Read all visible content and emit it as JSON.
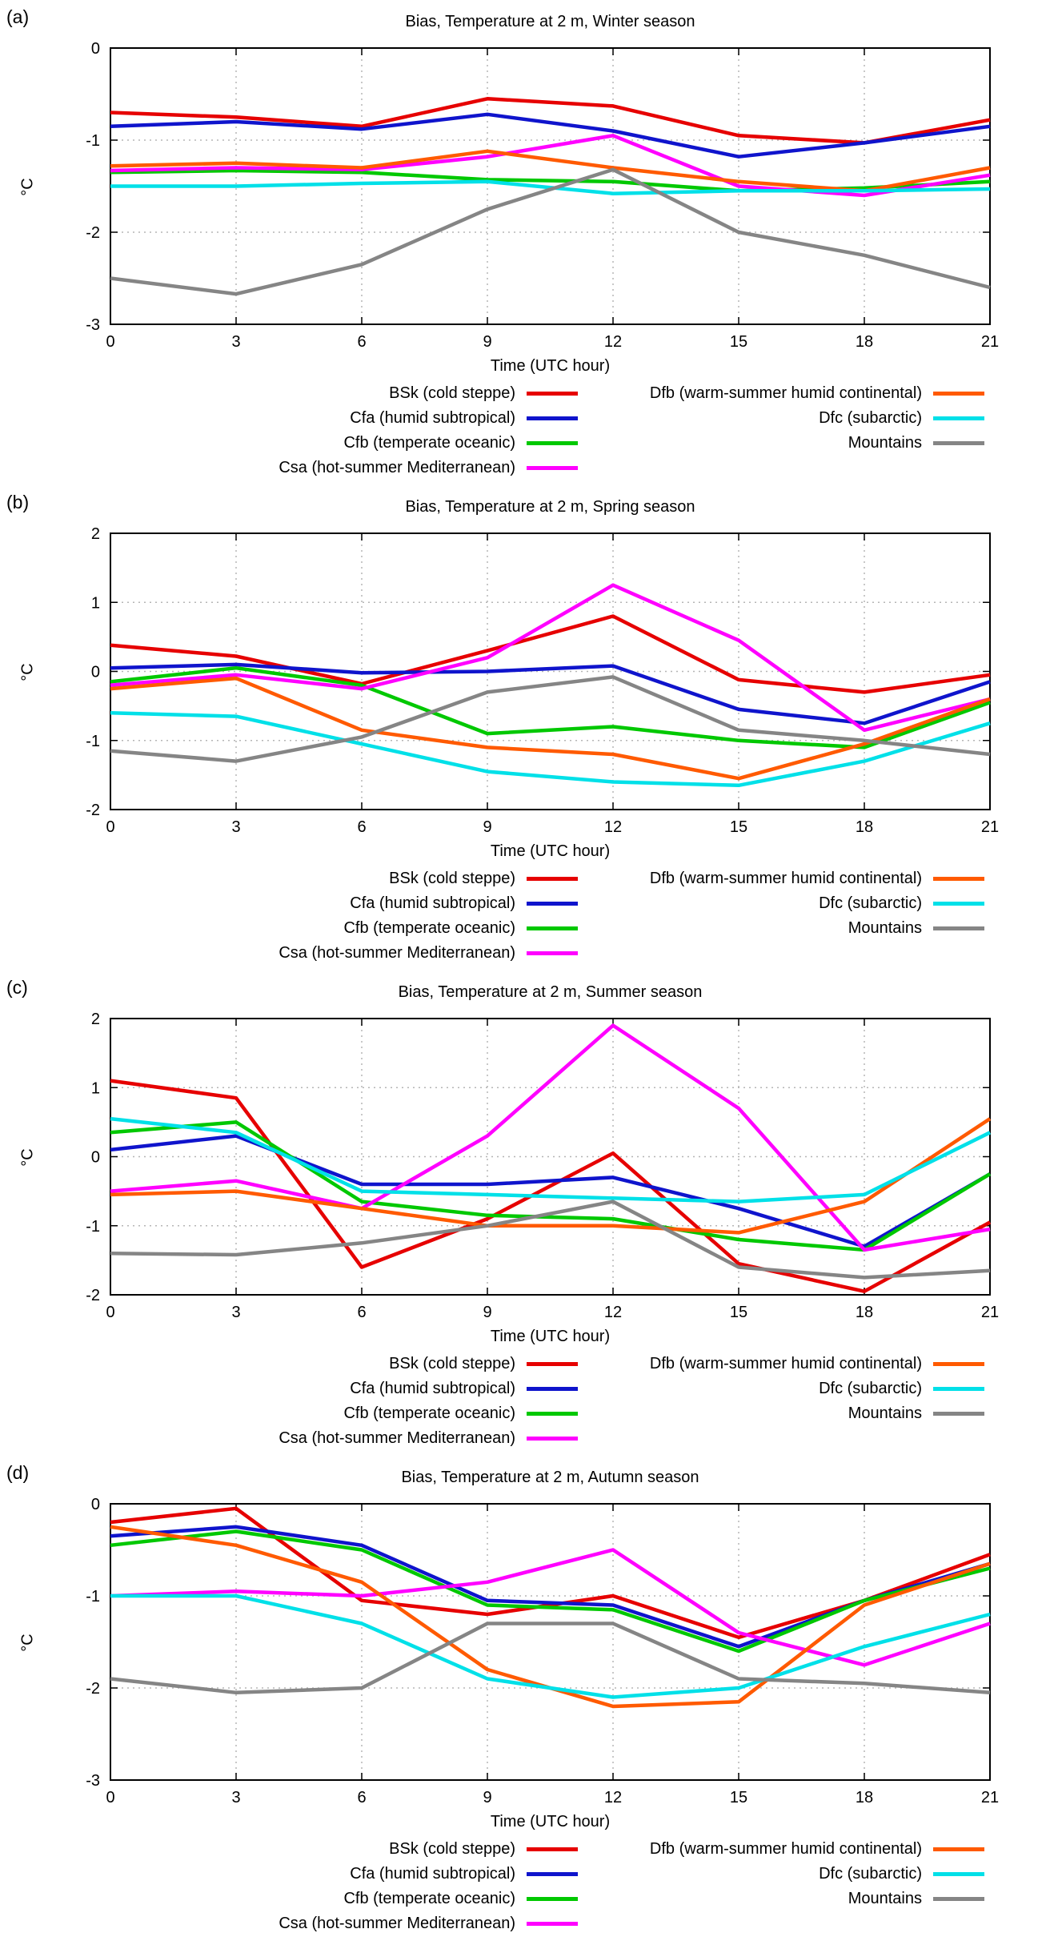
{
  "legend_columns": [
    [
      0,
      1,
      2,
      3
    ],
    [
      4,
      5,
      6
    ]
  ],
  "chart_data": [
    {
      "type": "line",
      "panel_label": "(a)",
      "title": "Bias, Temperature at 2 m, Winter season",
      "xlabel": "Time (UTC hour)",
      "ylabel": "°C",
      "x": [
        0,
        3,
        6,
        9,
        12,
        15,
        18,
        21
      ],
      "xlim": [
        0,
        21
      ],
      "ylim": [
        -3,
        0
      ],
      "yticks": [
        0,
        -1,
        -2,
        -3
      ],
      "grid": true,
      "legend_position": "below",
      "series": [
        {
          "name": "BSk (cold steppe)",
          "color": "#e60000",
          "values": [
            -0.7,
            -0.75,
            -0.85,
            -0.55,
            -0.63,
            -0.95,
            -1.03,
            -0.78
          ]
        },
        {
          "name": "Cfa (humid subtropical)",
          "color": "#0f14cc",
          "values": [
            -0.85,
            -0.8,
            -0.88,
            -0.72,
            -0.9,
            -1.18,
            -1.03,
            -0.85
          ]
        },
        {
          "name": "Cfb (temperate oceanic)",
          "color": "#00c800",
          "values": [
            -1.35,
            -1.33,
            -1.35,
            -1.43,
            -1.45,
            -1.55,
            -1.52,
            -1.45
          ]
        },
        {
          "name": "Csa (hot-summer Mediterranean)",
          "color": "#ff00ff",
          "values": [
            -1.33,
            -1.3,
            -1.32,
            -1.18,
            -0.95,
            -1.5,
            -1.6,
            -1.38
          ]
        },
        {
          "name": "Dfb (warm-summer humid continental)",
          "color": "#ff5a00",
          "values": [
            -1.28,
            -1.25,
            -1.3,
            -1.12,
            -1.3,
            -1.45,
            -1.55,
            -1.3
          ]
        },
        {
          "name": "Dfc (subarctic)",
          "color": "#00e0e8",
          "values": [
            -1.5,
            -1.5,
            -1.47,
            -1.45,
            -1.58,
            -1.55,
            -1.55,
            -1.53
          ]
        },
        {
          "name": "Mountains",
          "color": "#858585",
          "values": [
            -2.5,
            -2.67,
            -2.35,
            -1.75,
            -1.32,
            -2.0,
            -2.25,
            -2.6
          ]
        }
      ]
    },
    {
      "type": "line",
      "panel_label": "(b)",
      "title": "Bias, Temperature at 2 m, Spring season",
      "xlabel": "Time (UTC hour)",
      "ylabel": "°C",
      "x": [
        0,
        3,
        6,
        9,
        12,
        15,
        18,
        21
      ],
      "xlim": [
        0,
        21
      ],
      "ylim": [
        -2,
        2
      ],
      "yticks": [
        2,
        1,
        0,
        -1,
        -2
      ],
      "grid": true,
      "legend_position": "below",
      "series": [
        {
          "name": "BSk (cold steppe)",
          "color": "#e60000",
          "values": [
            0.38,
            0.22,
            -0.18,
            0.3,
            0.8,
            -0.12,
            -0.3,
            -0.05
          ]
        },
        {
          "name": "Cfa (humid subtropical)",
          "color": "#0f14cc",
          "values": [
            0.05,
            0.1,
            -0.02,
            0.0,
            0.08,
            -0.55,
            -0.75,
            -0.15
          ]
        },
        {
          "name": "Cfb (temperate oceanic)",
          "color": "#00c800",
          "values": [
            -0.15,
            0.05,
            -0.2,
            -0.9,
            -0.8,
            -1.0,
            -1.1,
            -0.45
          ]
        },
        {
          "name": "Csa (hot-summer Mediterranean)",
          "color": "#ff00ff",
          "values": [
            -0.2,
            -0.05,
            -0.25,
            0.2,
            1.25,
            0.45,
            -0.85,
            -0.4
          ]
        },
        {
          "name": "Dfb (warm-summer humid continental)",
          "color": "#ff5a00",
          "values": [
            -0.25,
            -0.1,
            -0.85,
            -1.1,
            -1.2,
            -1.55,
            -1.05,
            -0.4
          ]
        },
        {
          "name": "Dfc (subarctic)",
          "color": "#00e0e8",
          "values": [
            -0.6,
            -0.65,
            -1.05,
            -1.45,
            -1.6,
            -1.65,
            -1.3,
            -0.75
          ]
        },
        {
          "name": "Mountains",
          "color": "#858585",
          "values": [
            -1.15,
            -1.3,
            -0.95,
            -0.3,
            -0.08,
            -0.85,
            -1.0,
            -1.2
          ]
        }
      ]
    },
    {
      "type": "line",
      "panel_label": "(c)",
      "title": "Bias, Temperature at 2 m, Summer season",
      "xlabel": "Time (UTC hour)",
      "ylabel": "°C",
      "x": [
        0,
        3,
        6,
        9,
        12,
        15,
        18,
        21
      ],
      "xlim": [
        0,
        21
      ],
      "ylim": [
        -2,
        2
      ],
      "yticks": [
        2,
        1,
        0,
        -1,
        -2
      ],
      "grid": true,
      "legend_position": "below",
      "series": [
        {
          "name": "BSk (cold steppe)",
          "color": "#e60000",
          "values": [
            1.1,
            0.85,
            -1.6,
            -0.9,
            0.05,
            -1.55,
            -1.95,
            -0.95
          ]
        },
        {
          "name": "Cfa (humid subtropical)",
          "color": "#0f14cc",
          "values": [
            0.1,
            0.3,
            -0.4,
            -0.4,
            -0.3,
            -0.75,
            -1.3,
            -0.25
          ]
        },
        {
          "name": "Cfb (temperate oceanic)",
          "color": "#00c800",
          "values": [
            0.35,
            0.5,
            -0.65,
            -0.85,
            -0.9,
            -1.2,
            -1.35,
            -0.25
          ]
        },
        {
          "name": "Csa (hot-summer Mediterranean)",
          "color": "#ff00ff",
          "values": [
            -0.5,
            -0.35,
            -0.75,
            0.3,
            1.9,
            0.7,
            -1.35,
            -1.05
          ]
        },
        {
          "name": "Dfb (warm-summer humid continental)",
          "color": "#ff5a00",
          "values": [
            -0.55,
            -0.5,
            -0.75,
            -1.0,
            -1.0,
            -1.1,
            -0.65,
            0.55
          ]
        },
        {
          "name": "Dfc (subarctic)",
          "color": "#00e0e8",
          "values": [
            0.55,
            0.35,
            -0.5,
            -0.55,
            -0.6,
            -0.65,
            -0.55,
            0.35
          ]
        },
        {
          "name": "Mountains",
          "color": "#858585",
          "values": [
            -1.4,
            -1.42,
            -1.25,
            -1.0,
            -0.65,
            -1.6,
            -1.75,
            -1.65
          ]
        }
      ]
    },
    {
      "type": "line",
      "panel_label": "(d)",
      "title": "Bias, Temperature at 2 m, Autumn season",
      "xlabel": "Time (UTC hour)",
      "ylabel": "°C",
      "x": [
        0,
        3,
        6,
        9,
        12,
        15,
        18,
        21
      ],
      "xlim": [
        0,
        21
      ],
      "ylim": [
        -3,
        0
      ],
      "yticks": [
        0,
        -1,
        -2,
        -3
      ],
      "grid": true,
      "legend_position": "below",
      "series": [
        {
          "name": "BSk (cold steppe)",
          "color": "#e60000",
          "values": [
            -0.2,
            -0.05,
            -1.05,
            -1.2,
            -1.0,
            -1.45,
            -1.05,
            -0.55
          ]
        },
        {
          "name": "Cfa (humid subtropical)",
          "color": "#0f14cc",
          "values": [
            -0.35,
            -0.25,
            -0.45,
            -1.05,
            -1.1,
            -1.55,
            -1.05,
            -0.65
          ]
        },
        {
          "name": "Cfb (temperate oceanic)",
          "color": "#00c800",
          "values": [
            -0.45,
            -0.3,
            -0.5,
            -1.1,
            -1.15,
            -1.6,
            -1.05,
            -0.7
          ]
        },
        {
          "name": "Csa (hot-summer Mediterranean)",
          "color": "#ff00ff",
          "values": [
            -1.0,
            -0.95,
            -1.0,
            -0.85,
            -0.5,
            -1.4,
            -1.75,
            -1.3
          ]
        },
        {
          "name": "Dfb (warm-summer humid continental)",
          "color": "#ff5a00",
          "values": [
            -0.25,
            -0.45,
            -0.85,
            -1.8,
            -2.2,
            -2.15,
            -1.1,
            -0.65
          ]
        },
        {
          "name": "Dfc (subarctic)",
          "color": "#00e0e8",
          "values": [
            -1.0,
            -1.0,
            -1.3,
            -1.9,
            -2.1,
            -2.0,
            -1.55,
            -1.2
          ]
        },
        {
          "name": "Mountains",
          "color": "#858585",
          "values": [
            -1.9,
            -2.05,
            -2.0,
            -1.3,
            -1.3,
            -1.9,
            -1.95,
            -2.05
          ]
        }
      ]
    }
  ]
}
